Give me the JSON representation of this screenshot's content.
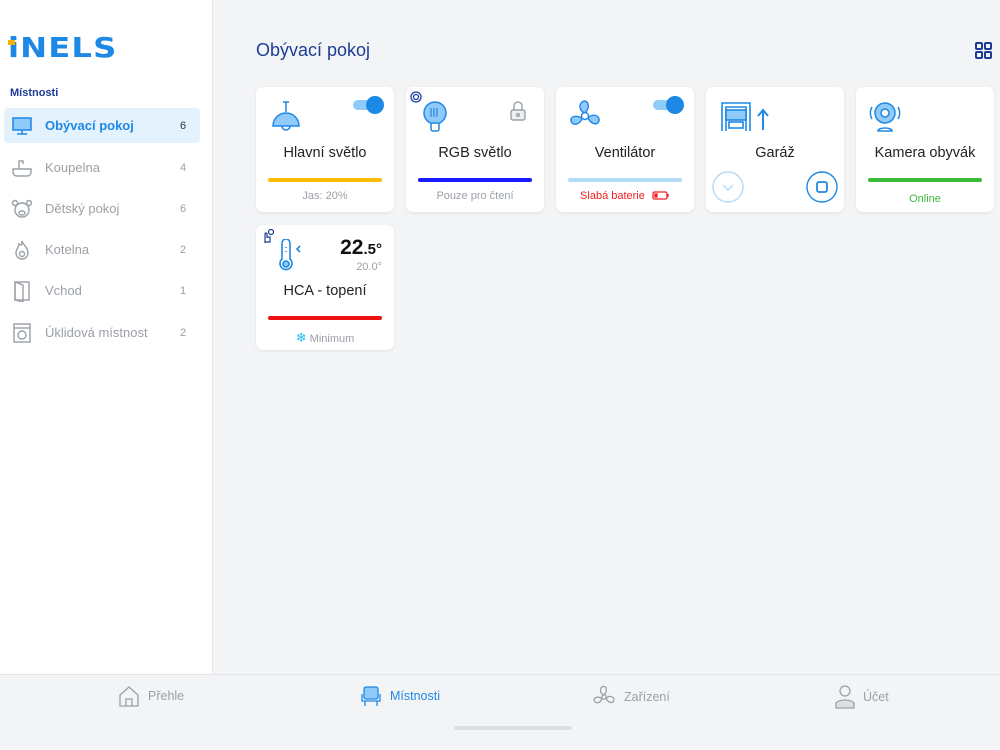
{
  "brand": "iNELS",
  "sidebar": {
    "section_title": "Místnosti",
    "items": [
      {
        "label": "Obývací pokoj",
        "count": "6",
        "icon": "monitor-icon",
        "active": true
      },
      {
        "label": "Koupelna",
        "count": "4",
        "icon": "bathtub-icon"
      },
      {
        "label": "Dětský pokoj",
        "count": "6",
        "icon": "teddy-bear-icon"
      },
      {
        "label": "Kotelna",
        "count": "2",
        "icon": "flame-icon"
      },
      {
        "label": "Vchod",
        "count": "1",
        "icon": "door-icon"
      },
      {
        "label": "Úklidová místnost",
        "count": "2",
        "icon": "washing-machine-icon"
      }
    ]
  },
  "main": {
    "title": "Obývací pokoj",
    "view_icon": "grid-icon",
    "cards": [
      {
        "name": "Hlavní světlo",
        "sub": "Jas: 20%",
        "bar_color": "#fbbc05",
        "toggle": "on",
        "brightness_percent": 20
      },
      {
        "name": "RGB světlo",
        "sub": "Pouze pro čtení",
        "bar_color": "#1a1aff",
        "icons": [
          "timer-icon",
          "led-bulb-icon",
          "lock-icon"
        ]
      },
      {
        "name": "Ventilátor",
        "sub": "Slabá baterie",
        "bar_color": "#b3daf7",
        "toggle": "on",
        "sub_color": "#f02020"
      },
      {
        "name": "Garáž",
        "icons": [
          "garage-icon",
          "arrow-up-icon",
          "chevron-down-button",
          "stop-button"
        ]
      },
      {
        "name": "Kamera obyvák",
        "sub": "Online",
        "bar_color": "#3cba3c",
        "sub_color": "#3cba3c"
      },
      {
        "name": "HCA - topení",
        "sub": "Minimum",
        "bar_color": "#ee1111",
        "temp_int": "22",
        "temp_dec": ".5°",
        "setpoint": "20.0°",
        "icons": [
          "manual-hand-icon",
          "thermometer-icon",
          "snowflake-icon"
        ]
      }
    ]
  },
  "bottom_nav": [
    {
      "label": "Přehle",
      "icon": "home-icon"
    },
    {
      "label": "Místnosti",
      "icon": "armchair-icon",
      "active": true
    },
    {
      "label": "Zařízení",
      "icon": "fan-icon"
    },
    {
      "label": "Účet",
      "icon": "user-icon"
    }
  ],
  "colors": {
    "accent": "#1e88e5",
    "title": "#1c3c96",
    "active_bg": "#e3f2fd"
  }
}
